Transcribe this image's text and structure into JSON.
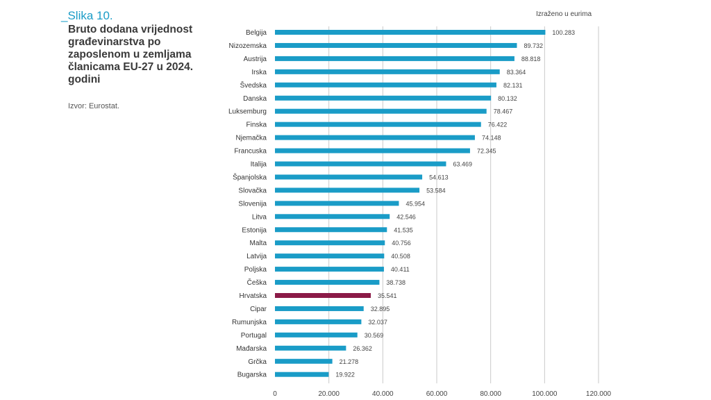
{
  "figure": {
    "label": "_Slika 10.",
    "title": "Bruto dodana vrijednost građevinarstva po zaposlenom u zemljama članicama EU-27 u 2024. godini",
    "source": "Izvor: Eurostat.",
    "unit_note": "Izraženo u eurima"
  },
  "colors": {
    "bar": "#1a9cc7",
    "highlight": "#8b1a47",
    "grid": "#c9c9c9"
  },
  "chart_data": {
    "type": "bar",
    "orientation": "horizontal",
    "title": "Bruto dodana vrijednost građevinarstva po zaposlenom u zemljama članicama EU-27 u 2024. godini",
    "xlabel": "",
    "ylabel": "",
    "xlim": [
      0,
      120000
    ],
    "ticks": [
      0,
      20000,
      40000,
      60000,
      80000,
      100000,
      120000
    ],
    "tick_labels": [
      "0",
      "20.000",
      "40.000",
      "60.000",
      "80.000",
      "100.000",
      "120.000"
    ],
    "grid": true,
    "highlight": "Hrvatska",
    "categories": [
      "Belgija",
      "Nizozemska",
      "Austrija",
      "Irska",
      "Švedska",
      "Danska",
      "Luksemburg",
      "Finska",
      "Njemačka",
      "Francuska",
      "Italija",
      "Španjolska",
      "Slovačka",
      "Slovenija",
      "Litva",
      "Estonija",
      "Malta",
      "Latvija",
      "Poljska",
      "Češka",
      "Hrvatska",
      "Cipar",
      "Rumunjska",
      "Portugal",
      "Mađarska",
      "Grčka",
      "Bugarska"
    ],
    "values": [
      100283,
      89732,
      88818,
      83364,
      82131,
      80132,
      78467,
      76422,
      74148,
      72345,
      63469,
      54613,
      53584,
      45954,
      42546,
      41535,
      40756,
      40508,
      40411,
      38738,
      35541,
      32895,
      32037,
      30569,
      26362,
      21278,
      19922
    ],
    "value_labels": [
      "100.283",
      "89.732",
      "88.818",
      "83.364",
      "82.131",
      "80.132",
      "78.467",
      "76.422",
      "74.148",
      "72.345",
      "63.469",
      "54.613",
      "53.584",
      "45.954",
      "42.546",
      "41.535",
      "40.756",
      "40.508",
      "40.411",
      "38.738",
      "35.541",
      "32.895",
      "32.037",
      "30.569",
      "26.362",
      "21.278",
      "19.922"
    ]
  }
}
